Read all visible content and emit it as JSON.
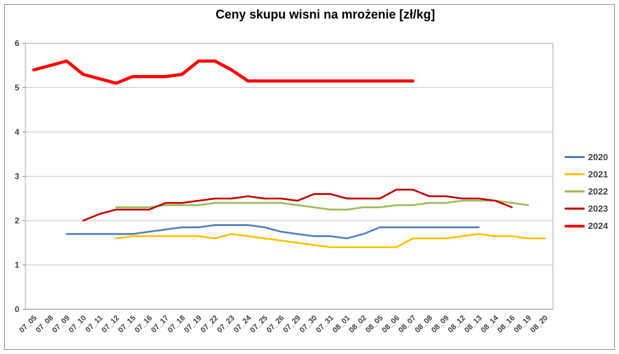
{
  "chart_data": {
    "type": "line",
    "title": "Ceny skupu wisni na mrożenie [zł/kg]",
    "xlabel": "",
    "ylabel": "",
    "ylim": [
      0,
      6
    ],
    "yticks": [
      "0",
      "1",
      "2",
      "3",
      "4",
      "5",
      "6"
    ],
    "grid": true,
    "legend_position": "right",
    "categories": [
      "07_05",
      "07_08",
      "07_09",
      "07_10",
      "07_11",
      "07_12",
      "07_15",
      "07_16",
      "07_17",
      "07_18",
      "07_19",
      "07_22",
      "07_23",
      "07_24",
      "07_25",
      "07_26",
      "07_29",
      "07_30",
      "07_31",
      "08_01",
      "08_02",
      "08_05",
      "08_06",
      "08_07",
      "08_08",
      "08_09",
      "08_12",
      "08_13",
      "08_14",
      "08_16",
      "08_19",
      "08_20"
    ],
    "series": [
      {
        "name": "2020",
        "color": "#4F81BD",
        "line_width": 2.6,
        "values": [
          null,
          null,
          1.7,
          1.7,
          1.7,
          1.7,
          1.7,
          1.75,
          1.8,
          1.85,
          1.85,
          1.9,
          1.9,
          1.9,
          1.85,
          1.75,
          1.7,
          1.65,
          1.65,
          1.6,
          1.7,
          1.85,
          1.85,
          1.85,
          1.85,
          1.85,
          1.85,
          1.85,
          null,
          null,
          null,
          null
        ]
      },
      {
        "name": "2021",
        "color": "#FFC000",
        "line_width": 2.6,
        "values": [
          null,
          null,
          null,
          null,
          null,
          1.6,
          1.65,
          1.65,
          1.65,
          1.65,
          1.65,
          1.6,
          1.7,
          1.65,
          1.6,
          1.55,
          1.5,
          1.45,
          1.4,
          1.4,
          1.4,
          1.4,
          1.4,
          1.6,
          1.6,
          1.6,
          1.65,
          1.7,
          1.65,
          1.65,
          1.6,
          1.6
        ]
      },
      {
        "name": "2022",
        "color": "#9BBB59",
        "line_width": 2.6,
        "values": [
          null,
          null,
          null,
          null,
          null,
          2.3,
          2.3,
          2.3,
          2.35,
          2.35,
          2.35,
          2.4,
          2.4,
          2.4,
          2.4,
          2.4,
          2.35,
          2.3,
          2.25,
          2.25,
          2.3,
          2.3,
          2.35,
          2.35,
          2.4,
          2.4,
          2.45,
          2.45,
          2.45,
          2.4,
          2.35,
          null
        ]
      },
      {
        "name": "2023",
        "color": "#C00000",
        "line_width": 2.6,
        "values": [
          null,
          null,
          null,
          2.0,
          2.15,
          2.25,
          2.25,
          2.25,
          2.4,
          2.4,
          2.45,
          2.5,
          2.5,
          2.55,
          2.5,
          2.5,
          2.45,
          2.6,
          2.6,
          2.5,
          2.5,
          2.5,
          2.7,
          2.7,
          2.55,
          2.55,
          2.5,
          2.5,
          2.45,
          2.3,
          null,
          null
        ]
      },
      {
        "name": "2024",
        "color": "#FF0000",
        "line_width": 4.6,
        "values": [
          5.4,
          5.5,
          5.6,
          5.3,
          5.2,
          5.1,
          5.25,
          5.25,
          5.25,
          5.3,
          5.6,
          5.6,
          5.4,
          5.15,
          5.15,
          5.15,
          5.15,
          5.15,
          5.15,
          5.15,
          5.15,
          5.15,
          5.15,
          5.15,
          null,
          null,
          null,
          null,
          null,
          null,
          null,
          null
        ]
      }
    ],
    "colors": {
      "grid": "#c6c6c6",
      "plot_border": "#a6a6a6",
      "axis_line": "#808080",
      "axis_label": "#404040",
      "frame_border": "#8a8a8a"
    }
  }
}
